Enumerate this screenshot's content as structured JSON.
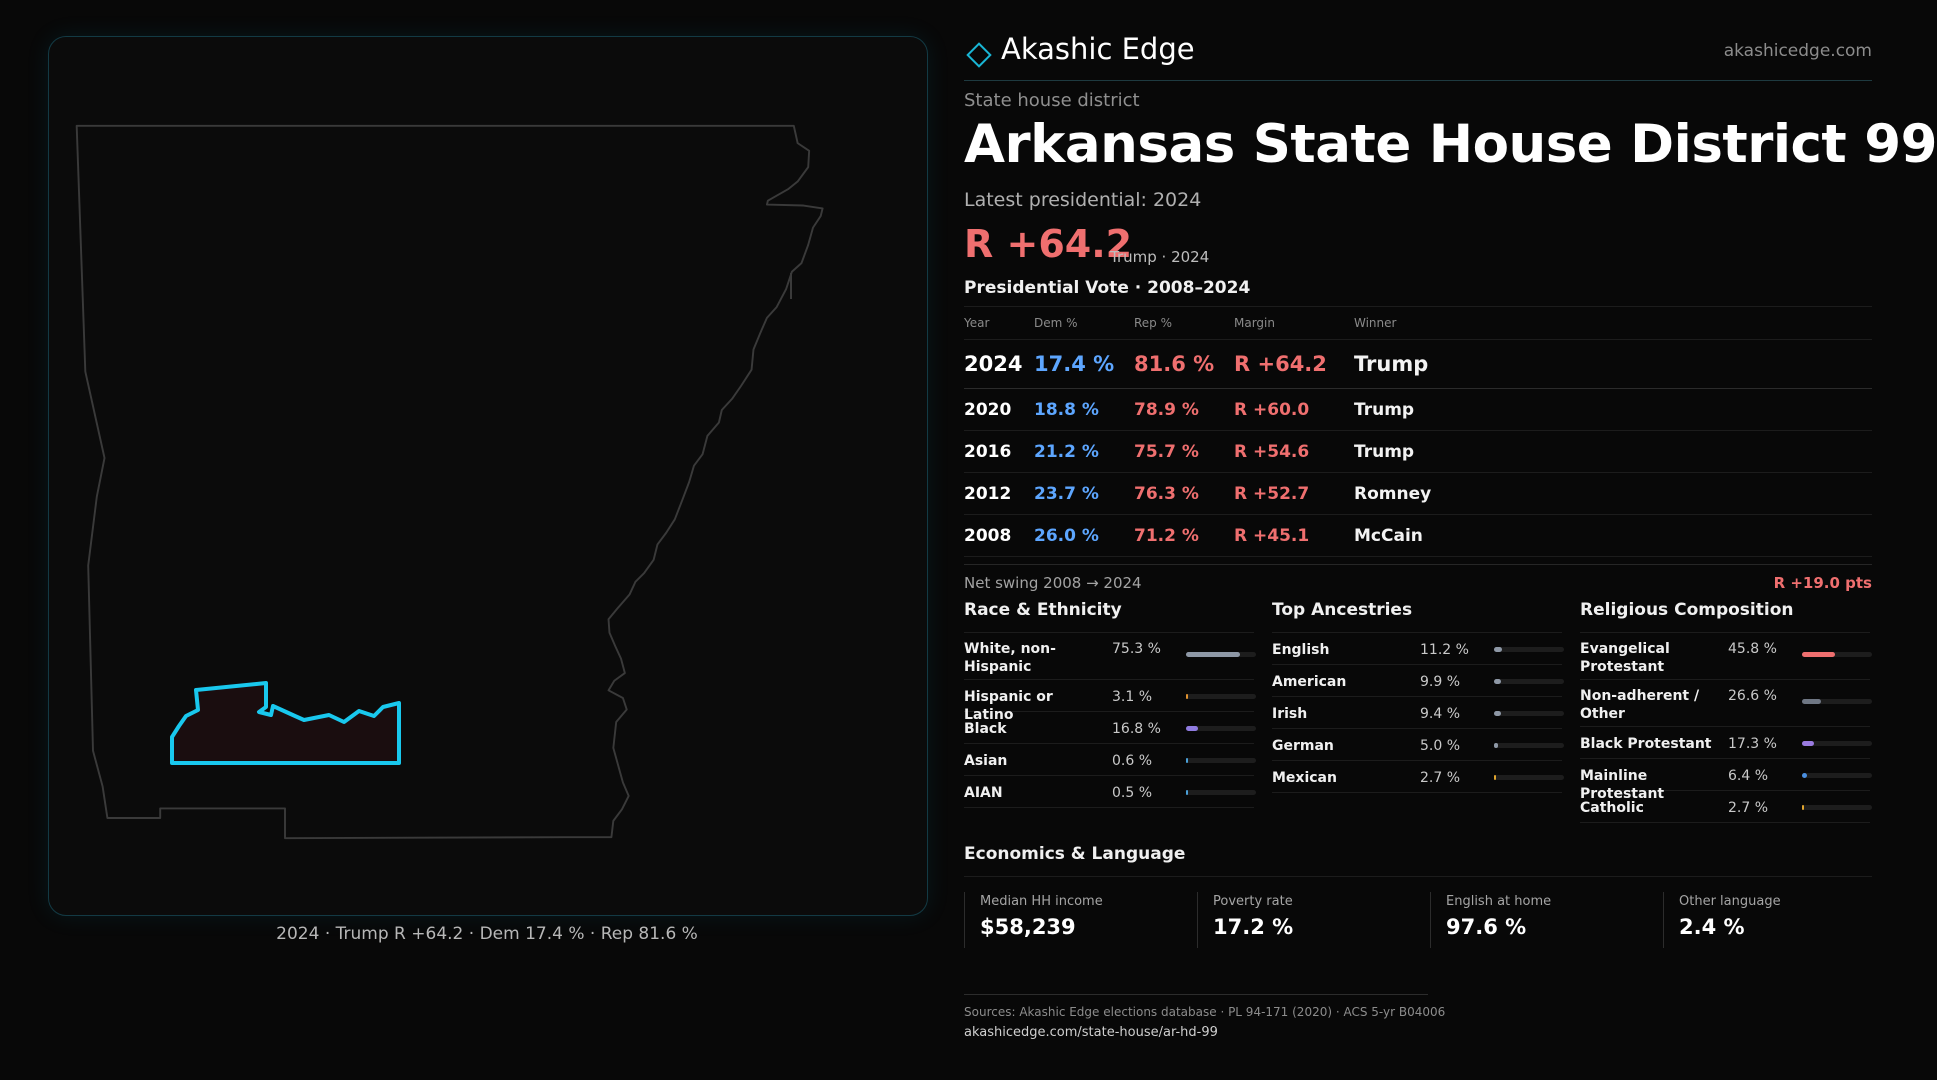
{
  "map": {
    "caption": "2024 · Trump R +64.2 · Dem 17.4 % · Rep 81.6 %",
    "outline_color": "#3a3a3a",
    "highlight_color": "#19c8ee"
  },
  "header": {
    "brand_name": "Akashic Edge",
    "brand_url": "akashicedge.com"
  },
  "kicker": "State house district",
  "title": "Arkansas State House District 99",
  "latest": {
    "label": "Latest presidential: 2024",
    "margin": "R +64.2",
    "note": "Trump · 2024"
  },
  "vote_table": {
    "title": "Presidential Vote · 2008–2024",
    "headers": [
      "Year",
      "Dem %",
      "Rep %",
      "Margin",
      "Winner"
    ],
    "rows": [
      {
        "year": "2024",
        "dem": "17.4 %",
        "rep": "81.6 %",
        "margin": "R +64.2",
        "winner": "Trump"
      },
      {
        "year": "2020",
        "dem": "18.8 %",
        "rep": "78.9 %",
        "margin": "R +60.0",
        "winner": "Trump"
      },
      {
        "year": "2016",
        "dem": "21.2 %",
        "rep": "75.7 %",
        "margin": "R +54.6",
        "winner": "Trump"
      },
      {
        "year": "2012",
        "dem": "23.7 %",
        "rep": "76.3 %",
        "margin": "R +52.7",
        "winner": "Romney"
      },
      {
        "year": "2008",
        "dem": "26.0 %",
        "rep": "71.2 %",
        "margin": "R +45.1",
        "winner": "McCain"
      }
    ]
  },
  "swing": {
    "label": "Net swing 2008 → 2024",
    "value": "R +19.0 pts"
  },
  "race": {
    "title": "Race & Ethnicity",
    "rows": [
      {
        "label": "White, non-Hispanic",
        "value": "75.3 %",
        "pct": 75.3,
        "color": "#8e98a6"
      },
      {
        "label": "Hispanic or Latino",
        "value": "3.1 %",
        "pct": 3.1,
        "color": "#e0922f"
      },
      {
        "label": "Black",
        "value": "16.8 %",
        "pct": 16.8,
        "color": "#8f7be0"
      },
      {
        "label": "Asian",
        "value": "0.6 %",
        "pct": 0.6,
        "color": "#4aa0d8"
      },
      {
        "label": "AIAN",
        "value": "0.5 %",
        "pct": 0.5,
        "color": "#4aa0d8"
      }
    ]
  },
  "ancestry": {
    "title": "Top Ancestries",
    "rows": [
      {
        "label": "English",
        "value": "11.2 %",
        "pct": 11.2,
        "color": "#8e98a6"
      },
      {
        "label": "American",
        "value": "9.9 %",
        "pct": 9.9,
        "color": "#8e98a6"
      },
      {
        "label": "Irish",
        "value": "9.4 %",
        "pct": 9.4,
        "color": "#8e98a6"
      },
      {
        "label": "German",
        "value": "5.0 %",
        "pct": 5.0,
        "color": "#8e98a6"
      },
      {
        "label": "Mexican",
        "value": "2.7 %",
        "pct": 2.7,
        "color": "#e0a52f"
      }
    ]
  },
  "religion": {
    "title": "Religious Composition",
    "rows": [
      {
        "label": "Evangelical Protestant",
        "value": "45.8 %",
        "pct": 45.8,
        "color": "#ef6f6f"
      },
      {
        "label": "Non-adherent / Other",
        "value": "26.6 %",
        "pct": 26.6,
        "color": "#6f7784"
      },
      {
        "label": "Black Protestant",
        "value": "17.3 %",
        "pct": 17.3,
        "color": "#9a7be0"
      },
      {
        "label": "Mainline Protestant",
        "value": "6.4 %",
        "pct": 6.4,
        "color": "#4a8fe0"
      },
      {
        "label": "Catholic",
        "value": "2.7 %",
        "pct": 2.7,
        "color": "#e0a52f"
      }
    ]
  },
  "economics": {
    "title": "Economics & Language",
    "cells": [
      {
        "label": "Median HH income",
        "value": "$58,239"
      },
      {
        "label": "Poverty rate",
        "value": "17.2 %"
      },
      {
        "label": "English at home",
        "value": "97.6 %"
      },
      {
        "label": "Other language",
        "value": "2.4 %"
      }
    ]
  },
  "footer": {
    "sources": "Sources: Akashic Edge elections database · PL 94-171 (2020) · ACS 5-yr B04006",
    "permalink": "akashicedge.com/state-house/ar-hd-99"
  }
}
